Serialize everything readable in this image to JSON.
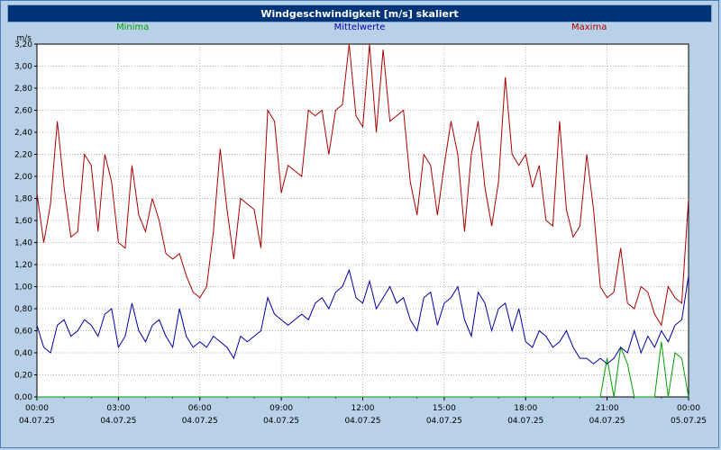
{
  "window": {
    "title": "Windgeschwindigkeit [m/s] skaliert"
  },
  "colors": {
    "titlebar": "#003377",
    "background": "#b9d1e8",
    "grid": "#999999",
    "plot_border": "#000000"
  },
  "legend": [
    {
      "label": "Minima",
      "color": "#00a000"
    },
    {
      "label": "Mittelwerte",
      "color": "#0000aa"
    },
    {
      "label": "Maxima",
      "color": "#aa0000"
    }
  ],
  "chart_data": {
    "type": "line",
    "title": "Windgeschwindigkeit [m/s] skaliert",
    "ylabel": "m/s",
    "xlabel": "",
    "ylim": [
      0,
      3.2
    ],
    "y_tick_step": 0.2,
    "grid": "dotted",
    "legend_position": "top",
    "x_minutes_step": 15,
    "y_ticks": [
      "0,00",
      "0,20",
      "0,40",
      "0,60",
      "0,80",
      "1,00",
      "1,20",
      "1,40",
      "1,60",
      "1,80",
      "2,00",
      "2,20",
      "2,40",
      "2,60",
      "2,80",
      "3,00",
      "3,20"
    ],
    "x_ticks": [
      {
        "t": "00:00",
        "d": "04.07.25"
      },
      {
        "t": "03:00",
        "d": "04.07.25"
      },
      {
        "t": "06:00",
        "d": "04.07.25"
      },
      {
        "t": "09:00",
        "d": "04.07.25"
      },
      {
        "t": "12:00",
        "d": "04.07.25"
      },
      {
        "t": "15:00",
        "d": "04.07.25"
      },
      {
        "t": "18:00",
        "d": "04.07.25"
      },
      {
        "t": "21:00",
        "d": "04.07.25"
      },
      {
        "t": "00:00",
        "d": "05.07.25"
      }
    ],
    "series": [
      {
        "name": "Minima",
        "color": "#00a000",
        "values": [
          0,
          0,
          0,
          0,
          0,
          0,
          0,
          0,
          0,
          0,
          0,
          0,
          0,
          0,
          0,
          0,
          0,
          0,
          0,
          0,
          0,
          0,
          0,
          0,
          0,
          0,
          0,
          0,
          0,
          0,
          0,
          0,
          0,
          0,
          0,
          0,
          0,
          0,
          0,
          0,
          0,
          0,
          0,
          0,
          0,
          0,
          0,
          0,
          0,
          0,
          0,
          0,
          0,
          0,
          0,
          0,
          0,
          0,
          0,
          0,
          0,
          0,
          0,
          0,
          0,
          0,
          0,
          0,
          0,
          0,
          0,
          0,
          0,
          0,
          0,
          0,
          0,
          0,
          0,
          0,
          0,
          0,
          0,
          0,
          0.35,
          0,
          0.45,
          0.3,
          0,
          0,
          0,
          0,
          0.5,
          0,
          0.4,
          0.35,
          0
        ]
      },
      {
        "name": "Mittelwerte",
        "color": "#0000aa",
        "values": [
          0.65,
          0.45,
          0.4,
          0.65,
          0.7,
          0.55,
          0.6,
          0.7,
          0.65,
          0.55,
          0.75,
          0.8,
          0.45,
          0.55,
          0.85,
          0.6,
          0.5,
          0.65,
          0.7,
          0.55,
          0.45,
          0.8,
          0.55,
          0.45,
          0.5,
          0.45,
          0.55,
          0.5,
          0.45,
          0.35,
          0.55,
          0.5,
          0.55,
          0.6,
          0.9,
          0.75,
          0.7,
          0.65,
          0.7,
          0.75,
          0.7,
          0.85,
          0.9,
          0.8,
          0.95,
          1.0,
          1.15,
          0.9,
          0.85,
          1.05,
          0.8,
          0.9,
          1.0,
          0.85,
          0.9,
          0.7,
          0.6,
          0.9,
          0.95,
          0.65,
          0.85,
          0.9,
          1.0,
          0.7,
          0.55,
          0.95,
          0.85,
          0.6,
          0.8,
          0.85,
          0.6,
          0.8,
          0.5,
          0.45,
          0.6,
          0.55,
          0.45,
          0.5,
          0.6,
          0.45,
          0.35,
          0.35,
          0.3,
          0.35,
          0.3,
          0.35,
          0.45,
          0.4,
          0.6,
          0.4,
          0.55,
          0.45,
          0.6,
          0.5,
          0.65,
          0.7,
          1.1
        ]
      },
      {
        "name": "Maxima",
        "color": "#aa0000",
        "values": [
          1.85,
          1.4,
          1.75,
          2.5,
          1.9,
          1.45,
          1.5,
          2.2,
          2.1,
          1.5,
          2.2,
          1.95,
          1.4,
          1.35,
          2.1,
          1.65,
          1.5,
          1.8,
          1.6,
          1.3,
          1.25,
          1.3,
          1.1,
          0.95,
          0.9,
          1.0,
          1.5,
          2.25,
          1.7,
          1.25,
          1.8,
          1.75,
          1.7,
          1.35,
          2.6,
          2.5,
          1.85,
          2.1,
          2.05,
          2.0,
          2.6,
          2.55,
          2.6,
          2.2,
          2.6,
          2.65,
          3.2,
          2.55,
          2.45,
          3.2,
          2.4,
          3.15,
          2.5,
          2.55,
          2.6,
          1.95,
          1.65,
          2.2,
          2.1,
          1.65,
          2.1,
          2.5,
          2.2,
          1.5,
          2.2,
          2.5,
          1.9,
          1.55,
          1.95,
          2.9,
          2.2,
          2.1,
          2.2,
          1.9,
          2.1,
          1.6,
          1.55,
          2.5,
          1.7,
          1.45,
          1.55,
          2.2,
          1.7,
          1.0,
          0.9,
          0.95,
          1.35,
          0.85,
          0.8,
          1.0,
          0.95,
          0.75,
          0.65,
          1.0,
          0.9,
          0.85,
          1.8
        ]
      }
    ]
  }
}
